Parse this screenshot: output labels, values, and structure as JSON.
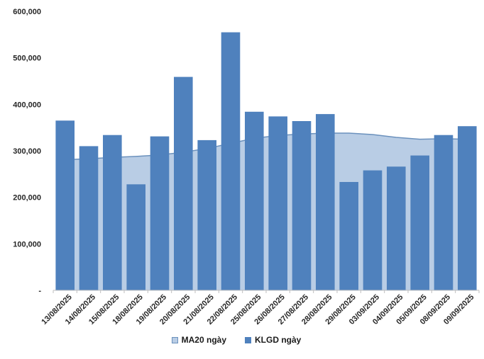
{
  "chart_data": {
    "type": "bar",
    "title": "",
    "xlabel": "",
    "ylabel": "",
    "categories": [
      "13/08/2025",
      "14/08/2025",
      "15/08/2025",
      "18/08/2025",
      "19/08/2025",
      "20/08/2025",
      "21/08/2025",
      "22/08/2025",
      "25/08/2025",
      "26/08/2025",
      "27/08/2025",
      "28/08/2025",
      "29/08/2025",
      "03/09/2025",
      "04/09/2025",
      "05/09/2025",
      "08/09/2025",
      "09/09/2025"
    ],
    "series": [
      {
        "name": "MA20 ngày",
        "type": "area",
        "fill": "#B9CDE5",
        "line_color": "#6B91BD",
        "values": [
          281000,
          283000,
          286000,
          288000,
          291000,
          297000,
          305000,
          316000,
          327000,
          333000,
          336000,
          338000,
          338000,
          335000,
          329000,
          325000,
          326000,
          325000
        ]
      },
      {
        "name": "KLGD ngày",
        "type": "bar",
        "color": "#4F81BD",
        "values": [
          365000,
          310000,
          334000,
          228000,
          331000,
          459000,
          323000,
          555000,
          384000,
          374000,
          364000,
          379000,
          233000,
          258000,
          266000,
          290000,
          334000,
          353000
        ]
      }
    ],
    "ylim": [
      0,
      600000
    ],
    "ytick_step": 100000,
    "ytick_labels": [
      "-",
      "100,000",
      "200,000",
      "300,000",
      "400,000",
      "500,000",
      "600,000"
    ],
    "grid": false,
    "legend_position": "bottom",
    "axis_color": "#BFBFBF",
    "label_color": "#262626"
  }
}
